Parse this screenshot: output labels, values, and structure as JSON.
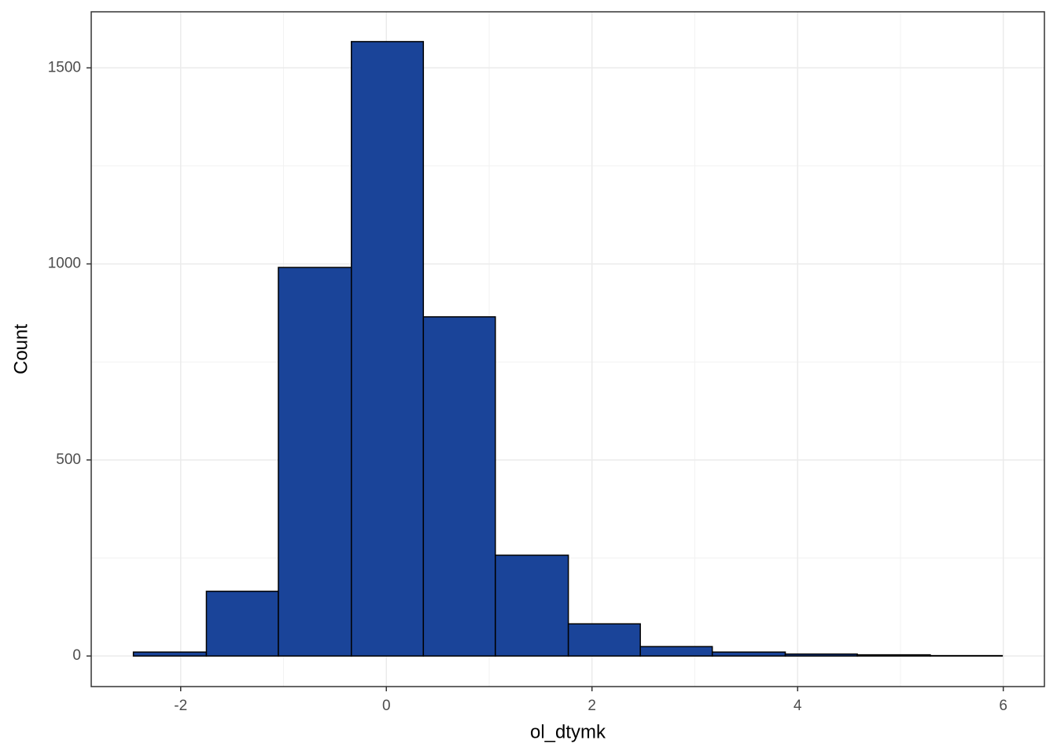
{
  "chart_data": {
    "type": "histogram",
    "x_label": "ol_dtymk",
    "y_label": "Count",
    "bins": [
      -2.46,
      -1.75,
      -1.05,
      -0.34,
      0.36,
      1.06,
      1.77,
      2.47,
      3.17,
      3.88,
      4.58,
      5.29,
      5.99
    ],
    "values": [
      10,
      165,
      991,
      1567,
      865,
      257,
      82,
      24,
      10,
      5,
      3,
      1
    ],
    "color": "#1a4499",
    "edge_color": "#000000",
    "xlim": [
      -2.87,
      6.4
    ],
    "xticks": [
      -2,
      0,
      2,
      4,
      6
    ],
    "x_minor_ticks": [
      -1,
      1,
      3,
      5
    ],
    "ylim": [
      -78,
      1643
    ],
    "yticks": [
      0,
      500,
      1000,
      1500
    ],
    "y_minor_ticks": [
      250,
      750,
      1250
    ],
    "grid": true
  }
}
